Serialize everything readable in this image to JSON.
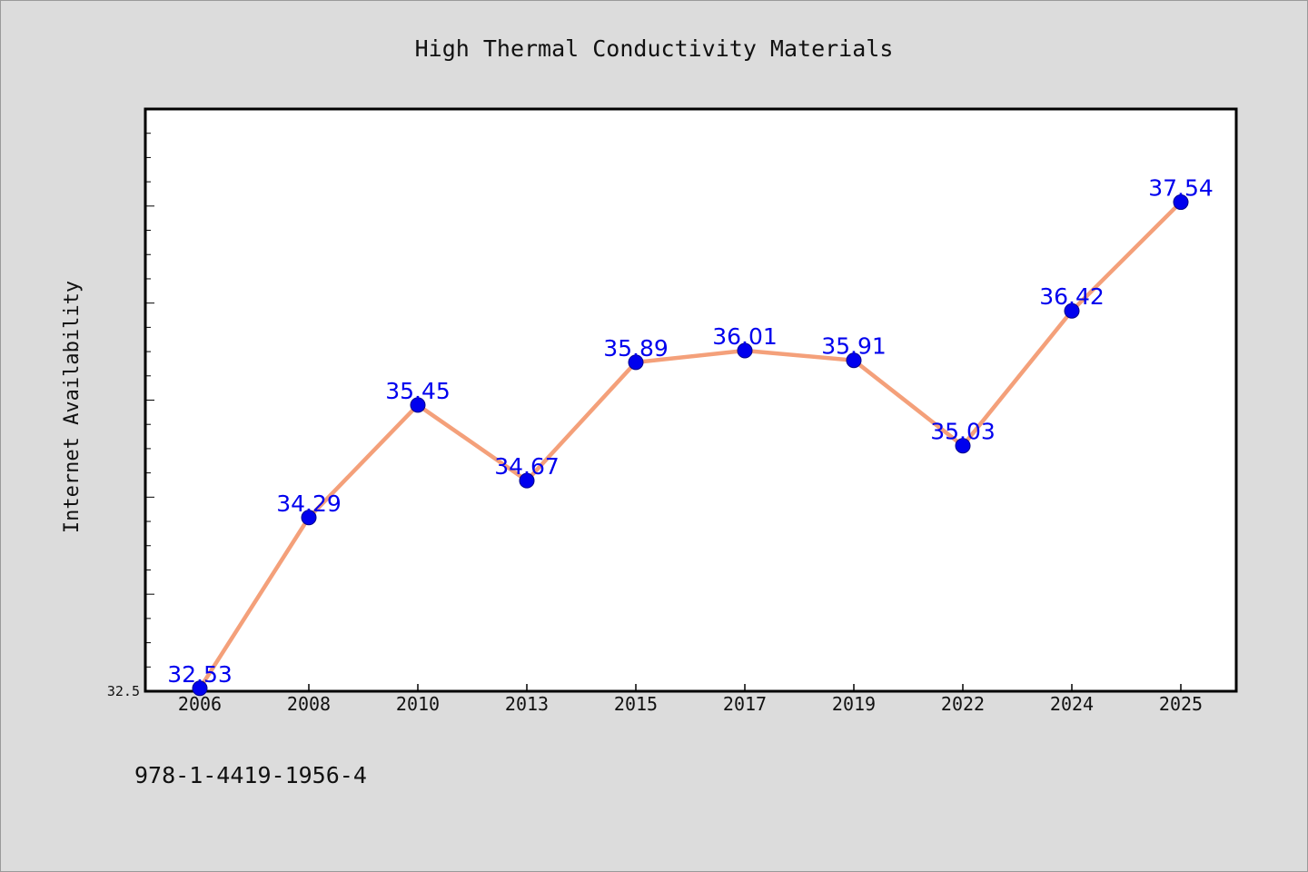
{
  "chart_data": {
    "type": "line",
    "title": "High Thermal Conductivity Materials",
    "xlabel": "",
    "ylabel": "Internet Availability",
    "categories": [
      "2006",
      "2008",
      "2010",
      "2013",
      "2015",
      "2017",
      "2019",
      "2022",
      "2024",
      "2025"
    ],
    "series": [
      {
        "values": [
          32.53,
          34.29,
          35.45,
          34.67,
          35.89,
          36.01,
          35.91,
          35.03,
          36.42,
          37.54
        ]
      }
    ],
    "data_labels": [
      "32.53",
      "34.29",
      "35.45",
      "34.67",
      "35.89",
      "36.01",
      "35.91",
      "35.03",
      "36.42",
      "37.54"
    ],
    "ylim": [
      32.5,
      38.5
    ],
    "ytick_labels": [
      "32.5"
    ],
    "grid": false,
    "line_color": "#f4a07a",
    "marker_color": "#0000ee",
    "label_color": "#0000ee"
  },
  "footer": {
    "text": "978-1-4419-1956-4"
  }
}
